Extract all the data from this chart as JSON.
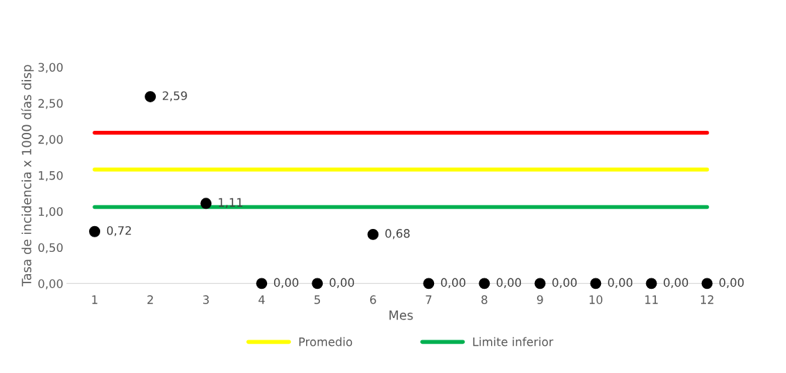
{
  "chart_data": {
    "type": "scatter",
    "xlabel": "Mes",
    "ylabel": "Tasa de incidencia x 1000 días disp",
    "categories": [
      "1",
      "2",
      "3",
      "4",
      "5",
      "6",
      "7",
      "8",
      "9",
      "10",
      "11",
      "12"
    ],
    "series": [
      {
        "marker": "circle",
        "color": "#000000",
        "values": [
          0.72,
          2.59,
          1.11,
          0,
          0,
          0.68,
          0,
          0,
          0,
          0,
          0,
          0
        ],
        "value_labels": [
          "0,72",
          "2,59",
          "1,11",
          "0,00",
          "0,00",
          "0,68",
          "0,00",
          "0,00",
          "0,00",
          "0,00",
          "0,00",
          "0,00"
        ]
      },
      {
        "type": "line",
        "color": "#ff0000",
        "values": [
          2.09,
          2.09,
          2.09,
          2.09,
          2.09,
          2.09,
          2.09,
          2.09,
          2.09,
          2.09,
          2.09,
          2.09
        ]
      },
      {
        "type": "line",
        "name": "Promedio",
        "color": "#ffff00",
        "values": [
          1.58,
          1.58,
          1.58,
          1.58,
          1.58,
          1.58,
          1.58,
          1.58,
          1.58,
          1.58,
          1.58,
          1.58
        ]
      },
      {
        "type": "line",
        "name": "Limite inferior",
        "color": "#00b050",
        "values": [
          1.06,
          1.06,
          1.06,
          1.06,
          1.06,
          1.06,
          1.06,
          1.06,
          1.06,
          1.06,
          1.06,
          1.06
        ]
      }
    ],
    "ylim": [
      0,
      3
    ],
    "yticks": [
      {
        "value": 0,
        "label": "0,00"
      },
      {
        "value": 0.5,
        "label": "0,50"
      },
      {
        "value": 1,
        "label": "1,00"
      },
      {
        "value": 1.5,
        "label": "1,50"
      },
      {
        "value": 2,
        "label": "2,00"
      },
      {
        "value": 2.5,
        "label": "2,50"
      },
      {
        "value": 3,
        "label": "3,00"
      }
    ],
    "legend": "bottom",
    "grid": false
  }
}
